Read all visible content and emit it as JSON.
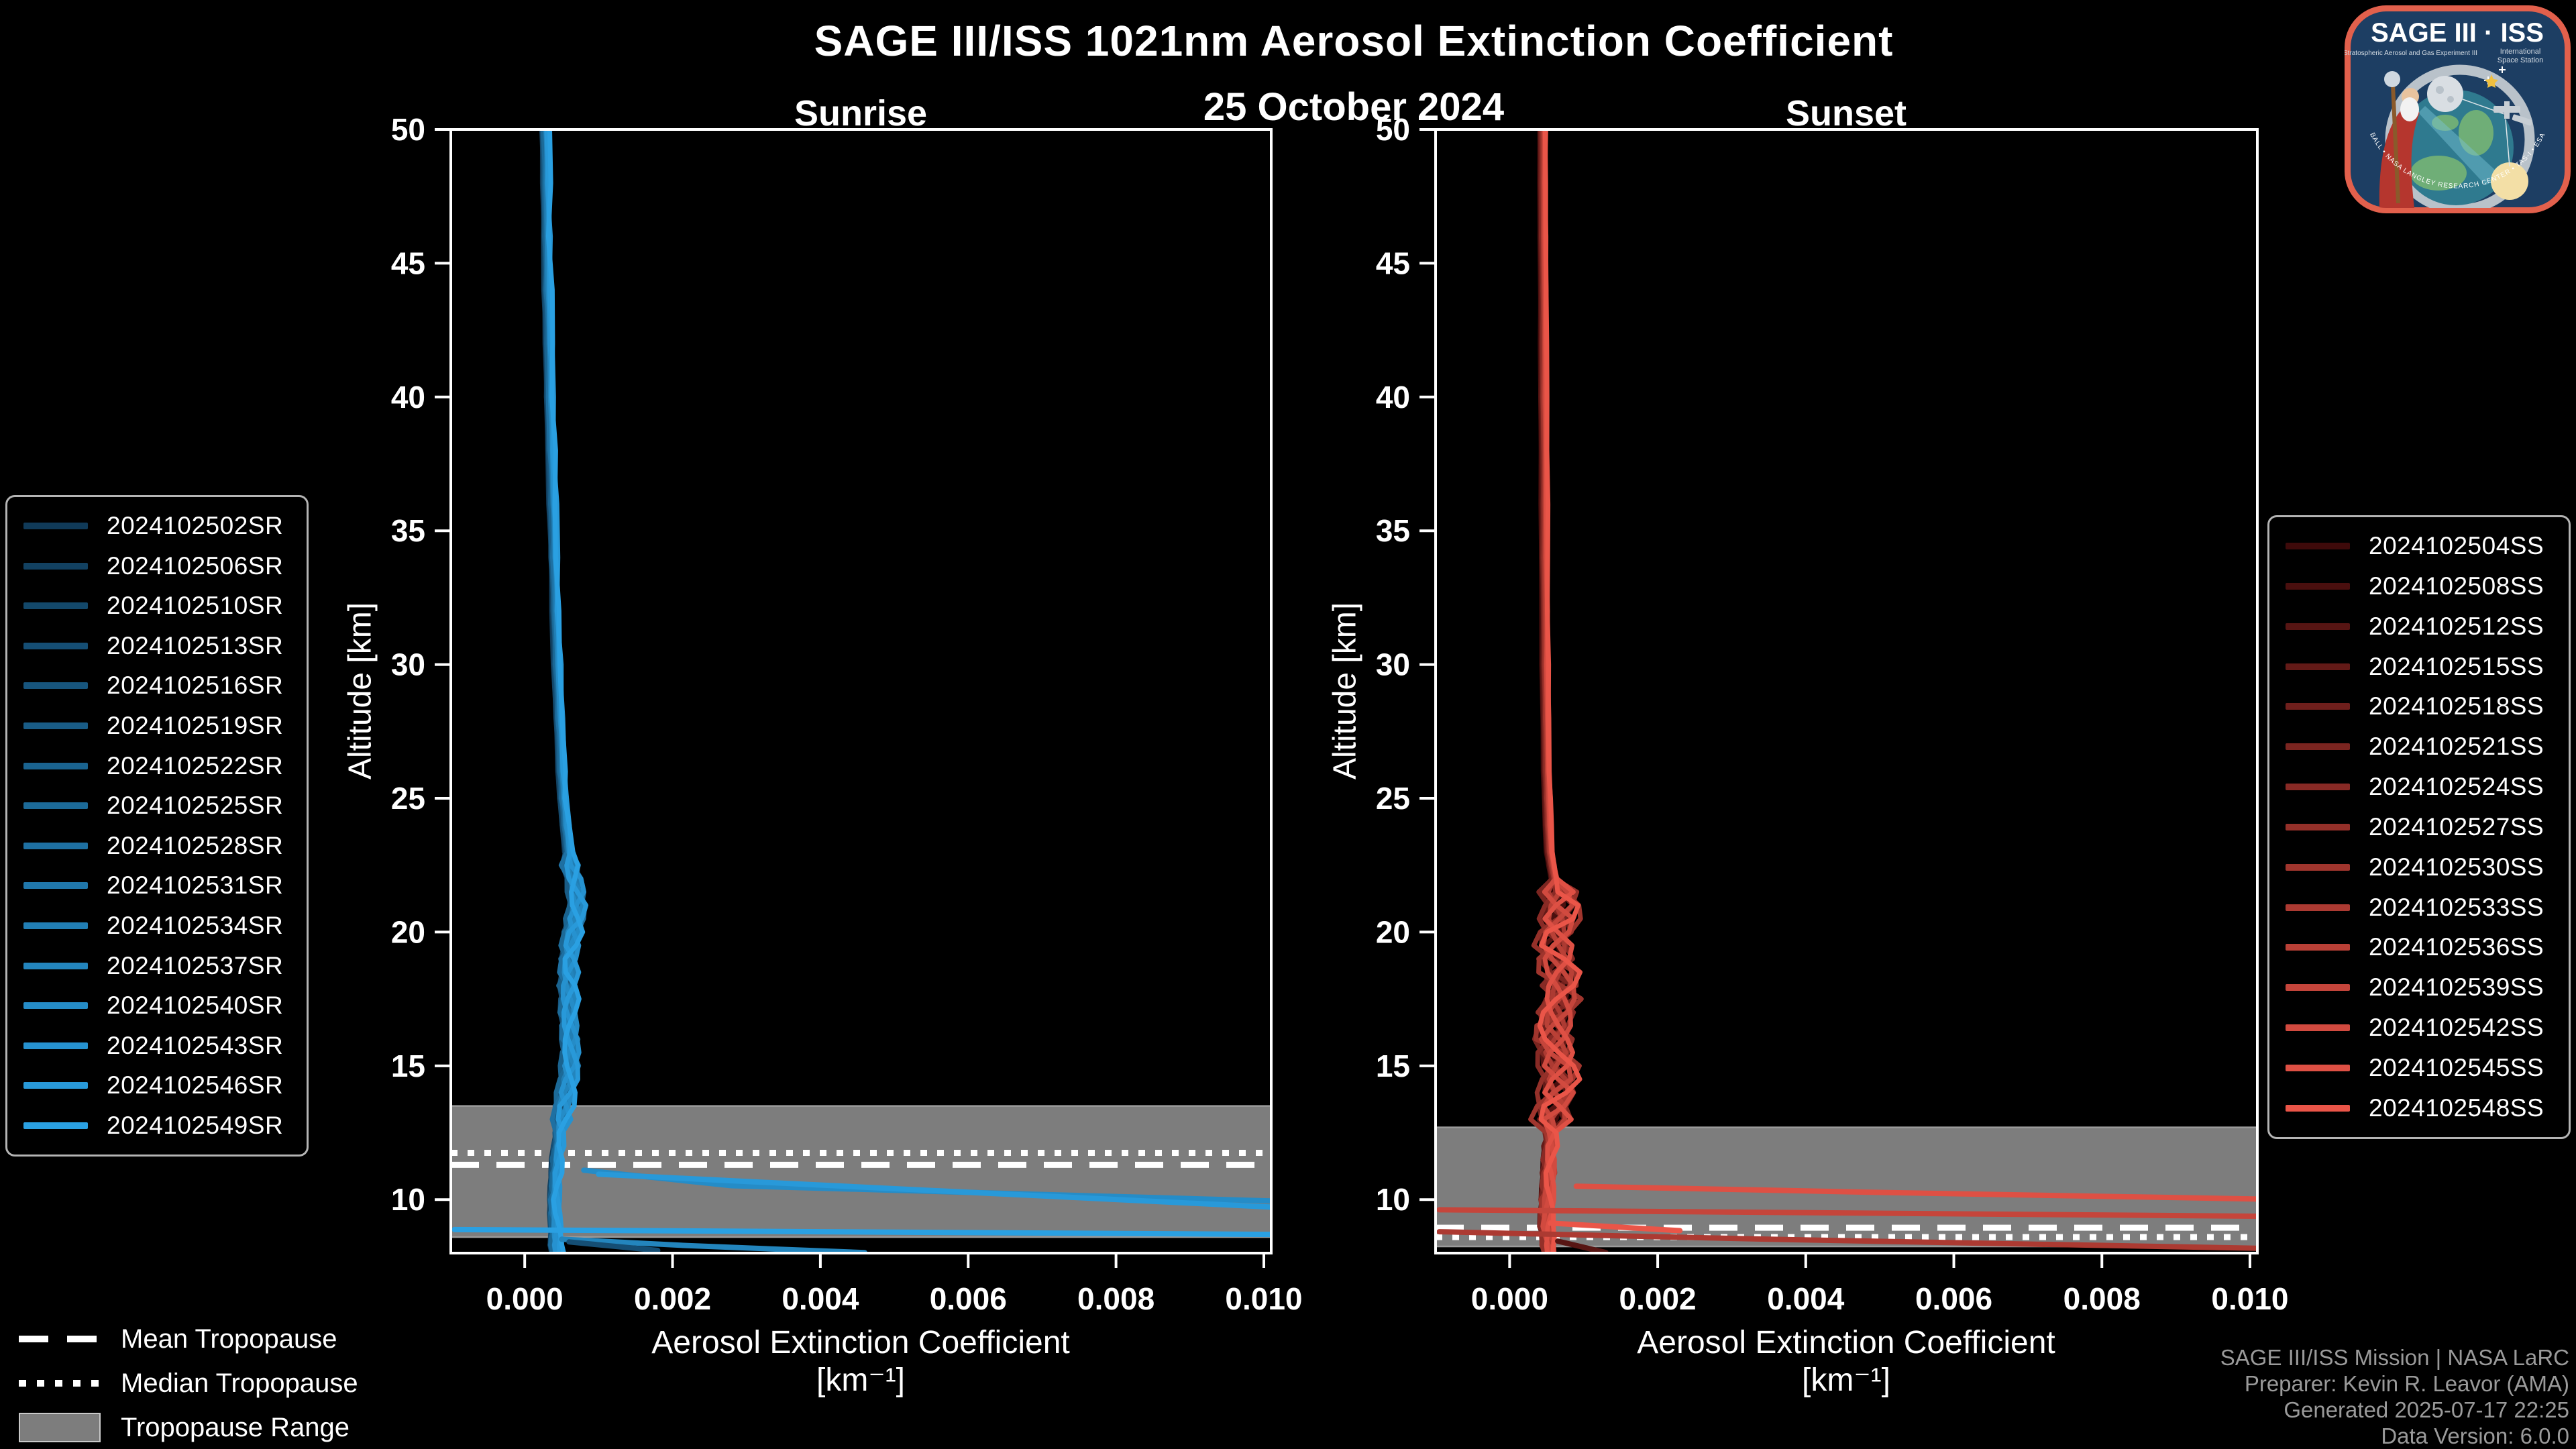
{
  "title": "SAGE III/ISS 1021nm Aerosol Extinction Coefficient",
  "subtitle": "25 October 2024",
  "attribution": {
    "lines": [
      "SAGE III/ISS Mission | NASA LaRC",
      "Preparer: Kevin R. Leavor (AMA)",
      "Generated 2025-07-17 22:25",
      "Data Version: 6.0.0"
    ]
  },
  "logo": {
    "title": "SAGE III · ISS",
    "sub_left": "Stratospheric Aerosol and Gas Experiment III",
    "sub_right_1": "International",
    "sub_right_2": "Space Station",
    "arc_text": "BALL • NASA LANGLEY RESEARCH CENTER • TAS-I • ESA",
    "border_color": "#e2604c",
    "background_color": "#1d3e63"
  },
  "tropopause_legend": {
    "mean_label": "Mean Tropopause",
    "median_label": "Median Tropopause",
    "range_label": "Tropopause Range"
  },
  "style": {
    "background": "#000000",
    "frame_color": "#ffffff",
    "tick_label_color": "#ffffff",
    "band_color": "#7d7d7d",
    "band_edge_color": "#9b9b9b",
    "tropopause_line_color": "#ffffff"
  },
  "chart_data": [
    {
      "type": "line",
      "panel": "Sunrise",
      "xlabel": "Aerosol Extinction Coefficient",
      "xlabel_unit": "[km⁻¹]",
      "ylabel": "Altitude [km]",
      "xlim": [
        -0.001,
        0.0101
      ],
      "ylim": [
        8.0,
        50
      ],
      "xtick_values": [
        0.0,
        0.002,
        0.004,
        0.006,
        0.008,
        0.01
      ],
      "xtick_labels": [
        "0.000",
        "0.002",
        "0.004",
        "0.006",
        "0.008",
        "0.010"
      ],
      "ytick_values": [
        10,
        15,
        20,
        25,
        30,
        35,
        40,
        45,
        50
      ],
      "grid": false,
      "legend_position": "outside-left",
      "tropopause": {
        "mean": 11.3,
        "median": 11.75,
        "range": [
          8.6,
          13.5
        ]
      },
      "series": [
        {
          "name": "2024102502SR",
          "color": "#103A58"
        },
        {
          "name": "2024102506SR",
          "color": "#124161"
        },
        {
          "name": "2024102510SR",
          "color": "#13486A"
        },
        {
          "name": "2024102513SR",
          "color": "#154E74"
        },
        {
          "name": "2024102516SR",
          "color": "#17557D"
        },
        {
          "name": "2024102519SR",
          "color": "#195C86"
        },
        {
          "name": "2024102522SR",
          "color": "#1A638F"
        },
        {
          "name": "2024102525SR",
          "color": "#1C6A98"
        },
        {
          "name": "2024102528SR",
          "color": "#1E70A2"
        },
        {
          "name": "2024102531SR",
          "color": "#2077AB"
        },
        {
          "name": "2024102534SR",
          "color": "#217EB4"
        },
        {
          "name": "2024102537SR",
          "color": "#2385BD"
        },
        {
          "name": "2024102540SR",
          "color": "#258CC7"
        },
        {
          "name": "2024102543SR",
          "color": "#2692D0"
        },
        {
          "name": "2024102546SR",
          "color": "#2899D9"
        },
        {
          "name": "2024102549SR",
          "color": "#2AA0E2"
        }
      ],
      "profile": {
        "altitude": [
          50,
          48,
          46,
          44,
          42,
          40,
          38,
          36,
          34,
          32,
          30,
          28,
          26,
          25,
          24,
          23,
          22.5,
          22,
          21.5,
          21,
          20.5,
          20,
          19.5,
          19,
          18.5,
          18,
          17.5,
          17,
          16.5,
          16,
          15.5,
          15,
          14.5,
          14,
          13.5,
          13,
          12.5,
          12,
          11.5,
          11,
          10.5,
          10,
          9.5,
          9,
          8.6,
          8.3,
          8.05
        ],
        "extinction": [
          0.00028,
          0.00029,
          0.0003,
          0.00031,
          0.00033,
          0.00034,
          0.00036,
          0.00038,
          0.0004,
          0.00042,
          0.00044,
          0.00047,
          0.0005,
          0.00052,
          0.00055,
          0.00059,
          0.00062,
          0.00066,
          0.00069,
          0.0007,
          0.00067,
          0.00063,
          0.00061,
          0.0006,
          0.00059,
          0.00058,
          0.00058,
          0.00059,
          0.0006,
          0.00061,
          0.00061,
          0.0006,
          0.00058,
          0.00055,
          0.00052,
          0.0005,
          0.00047,
          0.00045,
          0.00043,
          0.00042,
          0.00041,
          0.0004,
          0.0004,
          0.00041,
          0.00041,
          0.00041,
          0.00043
        ]
      },
      "wiggle_bands": [
        {
          "min": 23,
          "max": 99,
          "amp": 2.5e-05
        },
        {
          "min": 12.8,
          "max": 23,
          "amp": 0.00013
        },
        {
          "min": 0,
          "max": 12.8,
          "amp": 6e-05
        }
      ],
      "spikes": [
        {
          "series": 12,
          "points": [
            [
              0.0008,
              11.1
            ],
            [
              0.0028,
              10.52
            ],
            [
              0.0101,
              9.95
            ]
          ]
        },
        {
          "series": 14,
          "points": [
            [
              0.001,
              10.95
            ],
            [
              0.0101,
              9.72
            ]
          ]
        },
        {
          "series": 15,
          "points": [
            [
              -0.00095,
              8.88
            ],
            [
              0.0101,
              8.7
            ]
          ]
        },
        {
          "series": 11,
          "points": [
            [
              0.0005,
              8.52
            ],
            [
              0.0022,
              8.28
            ],
            [
              0.0046,
              8.02
            ]
          ]
        },
        {
          "series": 3,
          "points": [
            [
              0.0006,
              8.42
            ],
            [
              0.0018,
              8.1
            ]
          ]
        }
      ]
    },
    {
      "type": "line",
      "panel": "Sunset",
      "xlabel": "Aerosol Extinction Coefficient",
      "xlabel_unit": "[km⁻¹]",
      "ylabel": "Altitude [km]",
      "xlim": [
        -0.001,
        0.0101
      ],
      "ylim": [
        8.0,
        50
      ],
      "xtick_values": [
        0.0,
        0.002,
        0.004,
        0.006,
        0.008,
        0.01
      ],
      "xtick_labels": [
        "0.000",
        "0.002",
        "0.004",
        "0.006",
        "0.008",
        "0.010"
      ],
      "ytick_values": [
        10,
        15,
        20,
        25,
        30,
        35,
        40,
        45,
        50
      ],
      "grid": false,
      "legend_position": "outside-right",
      "tropopause": {
        "mean": 8.95,
        "median": 8.6,
        "range": [
          8.25,
          12.7
        ]
      },
      "series": [
        {
          "name": "2024102504SS",
          "color": "#3E0A0A"
        },
        {
          "name": "2024102508SS",
          "color": "#4A0F0E"
        },
        {
          "name": "2024102512SS",
          "color": "#571513"
        },
        {
          "name": "2024102515SS",
          "color": "#631A17"
        },
        {
          "name": "2024102518SS",
          "color": "#6F1F1C"
        },
        {
          "name": "2024102521SS",
          "color": "#7B2520"
        },
        {
          "name": "2024102524SS",
          "color": "#882A25"
        },
        {
          "name": "2024102527SS",
          "color": "#943029"
        },
        {
          "name": "2024102530SS",
          "color": "#A0352D"
        },
        {
          "name": "2024102533SS",
          "color": "#AC3A32"
        },
        {
          "name": "2024102536SS",
          "color": "#B94036"
        },
        {
          "name": "2024102539SS",
          "color": "#C5453B"
        },
        {
          "name": "2024102542SS",
          "color": "#D14A3F"
        },
        {
          "name": "2024102545SS",
          "color": "#DE5044"
        },
        {
          "name": "2024102548SS",
          "color": "#EA5548"
        }
      ],
      "profile": {
        "altitude": [
          50,
          48,
          46,
          44,
          42,
          40,
          38,
          36,
          34,
          32,
          30,
          28,
          26,
          25,
          24,
          23,
          22.5,
          22,
          21.5,
          21,
          20.5,
          20,
          19.5,
          19,
          18.5,
          18,
          17.5,
          17,
          16.5,
          16,
          15.5,
          15,
          14.5,
          14,
          13.5,
          13,
          12.5,
          12,
          11.5,
          11,
          10.5,
          10,
          9.5,
          9,
          8.6,
          8.3,
          8.05
        ],
        "extinction": [
          0.00045,
          0.00045,
          0.00045,
          0.00046,
          0.00046,
          0.00046,
          0.00047,
          0.00047,
          0.00047,
          0.00048,
          0.00048,
          0.00049,
          0.0005,
          0.00051,
          0.00052,
          0.00054,
          0.00057,
          0.0006,
          0.00064,
          0.00067,
          0.00066,
          0.00062,
          0.0006,
          0.00063,
          0.00067,
          0.0007,
          0.00068,
          0.00064,
          0.0006,
          0.00058,
          0.0006,
          0.00064,
          0.00067,
          0.00065,
          0.00061,
          0.00058,
          0.00056,
          0.00054,
          0.00053,
          0.00052,
          0.00051,
          0.0005,
          0.00049,
          0.00048,
          0.00051,
          0.00052,
          0.00054
        ]
      },
      "wiggle_bands": [
        {
          "min": 22,
          "max": 99,
          "amp": 1.2e-05
        },
        {
          "min": 12.9,
          "max": 22,
          "amp": 0.0003
        },
        {
          "min": 0,
          "max": 12.9,
          "amp": 9e-05
        }
      ],
      "spikes": [
        {
          "series": 13,
          "points": [
            [
              0.0009,
              10.5
            ],
            [
              0.0048,
              10.28
            ],
            [
              0.0101,
              10.02
            ]
          ]
        },
        {
          "series": 11,
          "points": [
            [
              -0.00095,
              9.62
            ],
            [
              0.0101,
              9.38
            ]
          ]
        },
        {
          "series": 9,
          "points": [
            [
              -0.00095,
              8.8
            ],
            [
              0.0035,
              8.52
            ],
            [
              0.0101,
              8.18
            ]
          ]
        },
        {
          "series": 14,
          "points": [
            [
              0.00055,
              9.12
            ],
            [
              0.0023,
              8.84
            ]
          ]
        },
        {
          "series": 2,
          "points": [
            [
              0.00065,
              8.45
            ],
            [
              0.0013,
              8.02
            ]
          ]
        }
      ]
    }
  ]
}
